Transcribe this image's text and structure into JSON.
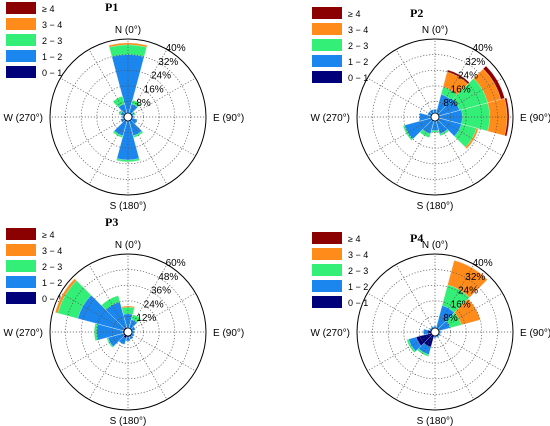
{
  "chart_data": [
    {
      "type": "windrose",
      "title": "P1",
      "direction_labels": [
        "N (0°)",
        "E (90°)",
        "S (180°)",
        "W (270°)"
      ],
      "ring_labels": [
        "8%",
        "16%",
        "24%",
        "32%",
        "40%"
      ],
      "rmax": 40,
      "legend": [
        "≥ 4",
        "3 − 4",
        "2 − 3",
        "1 − 2",
        "0 − 1"
      ],
      "colors": [
        "#8b0000",
        "#ff8c1a",
        "#33ee77",
        "#1a86ee",
        "#00007a"
      ],
      "sectors": [
        {
          "dir": 0,
          "cum": [
            1,
            32,
            37,
            38,
            38
          ]
        },
        {
          "dir": 30,
          "cum": [
            1,
            7,
            9,
            9,
            9
          ]
        },
        {
          "dir": 60,
          "cum": [
            1,
            3,
            4,
            4,
            4
          ]
        },
        {
          "dir": 90,
          "cum": [
            1,
            3,
            3,
            3,
            3
          ]
        },
        {
          "dir": 120,
          "cum": [
            2,
            5,
            5,
            5,
            5
          ]
        },
        {
          "dir": 150,
          "cum": [
            2,
            10,
            11,
            11,
            11
          ]
        },
        {
          "dir": 180,
          "cum": [
            2,
            22,
            23,
            23,
            23
          ]
        },
        {
          "dir": 210,
          "cum": [
            2,
            10,
            11,
            11,
            11
          ]
        },
        {
          "dir": 240,
          "cum": [
            2,
            4,
            4,
            4,
            4
          ]
        },
        {
          "dir": 270,
          "cum": [
            1,
            3,
            3,
            3,
            3
          ]
        },
        {
          "dir": 300,
          "cum": [
            1,
            4,
            5,
            5,
            5
          ]
        },
        {
          "dir": 330,
          "cum": [
            1,
            7,
            11,
            11,
            11
          ]
        }
      ]
    },
    {
      "type": "windrose",
      "title": "P2",
      "direction_labels": [
        "N (0°)",
        "E (90°)",
        "S (180°)",
        "W (270°)"
      ],
      "ring_labels": [
        "8%",
        "16%",
        "24%",
        "32%",
        "40%"
      ],
      "rmax": 40,
      "legend": [
        "≥ 4",
        "3 − 4",
        "2 − 3",
        "1 − 2",
        "0 − 1"
      ],
      "colors": [
        "#8b0000",
        "#ff8c1a",
        "#33ee77",
        "#1a86ee",
        "#00007a"
      ],
      "sectors": [
        {
          "dir": 0,
          "cum": [
            2,
            4,
            4,
            4,
            4
          ]
        },
        {
          "dir": 30,
          "cum": [
            2,
            12,
            16,
            24,
            25
          ]
        },
        {
          "dir": 60,
          "cum": [
            2,
            13,
            28,
            35,
            37
          ]
        },
        {
          "dir": 90,
          "cum": [
            2,
            14,
            28,
            37,
            38
          ]
        },
        {
          "dir": 120,
          "cum": [
            2,
            14,
            22,
            23,
            23
          ]
        },
        {
          "dir": 150,
          "cum": [
            2,
            9,
            10,
            10,
            10
          ]
        },
        {
          "dir": 180,
          "cum": [
            2,
            7,
            8,
            8,
            8
          ]
        },
        {
          "dir": 210,
          "cum": [
            2,
            9,
            11,
            11,
            11
          ]
        },
        {
          "dir": 240,
          "cum": [
            2,
            16,
            17,
            17,
            17
          ]
        },
        {
          "dir": 270,
          "cum": [
            2,
            8,
            8,
            8,
            8
          ]
        },
        {
          "dir": 300,
          "cum": [
            2,
            4,
            4,
            4,
            4
          ]
        },
        {
          "dir": 330,
          "cum": [
            2,
            4,
            4,
            4,
            4
          ]
        }
      ]
    },
    {
      "type": "windrose",
      "title": "P3",
      "direction_labels": [
        "N (0°)",
        "E (90°)",
        "S (180°)",
        "W (270°)"
      ],
      "ring_labels": [
        "12%",
        "24%",
        "36%",
        "48%",
        "60%"
      ],
      "rmax": 60,
      "legend": [
        "≥ 4",
        "3 − 4",
        "2 − 3",
        "1 − 2",
        "0 − 1"
      ],
      "colors": [
        "#8b0000",
        "#ff8c1a",
        "#33ee77",
        "#1a86ee",
        "#00007a"
      ],
      "sectors": [
        {
          "dir": 0,
          "cum": [
            3,
            14,
            19,
            20,
            20
          ]
        },
        {
          "dir": 30,
          "cum": [
            3,
            10,
            14,
            14,
            14
          ]
        },
        {
          "dir": 60,
          "cum": [
            3,
            6,
            6,
            6,
            6
          ]
        },
        {
          "dir": 90,
          "cum": [
            3,
            5,
            5,
            5,
            5
          ]
        },
        {
          "dir": 120,
          "cum": [
            3,
            5,
            5,
            5,
            5
          ]
        },
        {
          "dir": 150,
          "cum": [
            4,
            6,
            6,
            6,
            6
          ]
        },
        {
          "dir": 180,
          "cum": [
            4,
            7,
            7,
            7,
            7
          ]
        },
        {
          "dir": 210,
          "cum": [
            5,
            10,
            10,
            10,
            10
          ]
        },
        {
          "dir": 240,
          "cum": [
            4,
            16,
            17,
            17,
            17
          ]
        },
        {
          "dir": 270,
          "cum": [
            4,
            24,
            26,
            26,
            26
          ]
        },
        {
          "dir": 300,
          "cum": [
            4,
            40,
            56,
            58,
            58
          ]
        },
        {
          "dir": 330,
          "cum": [
            4,
            24,
            29,
            29,
            29
          ]
        }
      ]
    },
    {
      "type": "windrose",
      "title": "P4",
      "direction_labels": [
        "N (0°)",
        "E (90°)",
        "S (180°)",
        "W (270°)"
      ],
      "ring_labels": [
        "8%",
        "16%",
        "24%",
        "32%",
        "40%"
      ],
      "rmax": 40,
      "legend": [
        "≥ 4",
        "3 − 4",
        "2 − 3",
        "1 − 2",
        "0 − 1"
      ],
      "colors": [
        "#8b0000",
        "#ff8c1a",
        "#33ee77",
        "#1a86ee",
        "#00007a"
      ],
      "sectors": [
        {
          "dir": 0,
          "cum": [
            2,
            3,
            3,
            3,
            3
          ]
        },
        {
          "dir": 30,
          "cum": [
            2,
            14,
            25,
            38,
            38
          ]
        },
        {
          "dir": 60,
          "cum": [
            2,
            8,
            14,
            24,
            24
          ]
        },
        {
          "dir": 90,
          "cum": [
            2,
            3,
            3,
            3,
            3
          ]
        },
        {
          "dir": 120,
          "cum": [
            2,
            3,
            3,
            3,
            3
          ]
        },
        {
          "dir": 150,
          "cum": [
            2,
            3,
            3,
            3,
            3
          ]
        },
        {
          "dir": 180,
          "cum": [
            2,
            3,
            3,
            3,
            3
          ]
        },
        {
          "dir": 210,
          "cum": [
            8,
            12,
            13,
            13,
            13
          ]
        },
        {
          "dir": 240,
          "cum": [
            10,
            14,
            15,
            15,
            15
          ]
        },
        {
          "dir": 270,
          "cum": [
            4,
            6,
            6,
            6,
            6
          ]
        },
        {
          "dir": 300,
          "cum": [
            2,
            3,
            3,
            3,
            3
          ]
        },
        {
          "dir": 330,
          "cum": [
            2,
            3,
            3,
            3,
            3
          ]
        }
      ]
    }
  ]
}
